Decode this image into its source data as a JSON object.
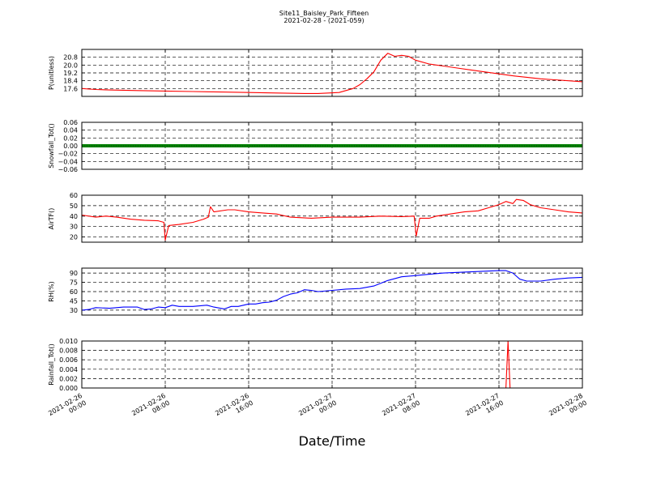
{
  "figure": {
    "title_line1": "Site11_Baisley_Park_Fifteen",
    "title_line2": "2021-02-28 - (2021-059)",
    "xlabel": "Date/Time"
  },
  "chart_data": {
    "type": "line",
    "x_range": [
      "2021-02-26 00:00",
      "2021-02-28 00:00"
    ],
    "x_tick_labels": [
      [
        "2021-02-26",
        "00:00"
      ],
      [
        "2021-02-26",
        "08:00"
      ],
      [
        "2021-02-26",
        "16:00"
      ],
      [
        "2021-02-27",
        "00:00"
      ],
      [
        "2021-02-27",
        "08:00"
      ],
      [
        "2021-02-27",
        "16:00"
      ],
      [
        "2021-02-28",
        "00:00"
      ]
    ],
    "grid": true,
    "panels": [
      {
        "ylabel": "P(unitless)",
        "color": "#ff0000",
        "ylim": [
          16.8,
          21.6
        ],
        "yticks": [
          "17.6",
          "18.4",
          "19.2",
          "20.0",
          "20.8"
        ],
        "series": [
          {
            "x": 0,
            "y": 17.6
          },
          {
            "x": 2,
            "y": 17.5
          },
          {
            "x": 4,
            "y": 17.45
          },
          {
            "x": 8,
            "y": 17.4
          },
          {
            "x": 12,
            "y": 17.35
          },
          {
            "x": 16,
            "y": 17.3
          },
          {
            "x": 20,
            "y": 17.25
          },
          {
            "x": 24,
            "y": 17.2
          },
          {
            "x": 28,
            "y": 17.15
          },
          {
            "x": 32,
            "y": 17.1
          },
          {
            "x": 34,
            "y": 17.1
          },
          {
            "x": 37,
            "y": 17.2
          },
          {
            "x": 39,
            "y": 17.6
          },
          {
            "x": 40,
            "y": 18.0
          },
          {
            "x": 41,
            "y": 18.6
          },
          {
            "x": 42,
            "y": 19.3
          },
          {
            "x": 43,
            "y": 20.5
          },
          {
            "x": 44,
            "y": 21.2
          },
          {
            "x": 45,
            "y": 20.9
          },
          {
            "x": 46,
            "y": 21.0
          },
          {
            "x": 47,
            "y": 20.9
          },
          {
            "x": 48,
            "y": 20.5
          },
          {
            "x": 50,
            "y": 20.1
          },
          {
            "x": 52,
            "y": 19.9
          },
          {
            "x": 54,
            "y": 19.7
          },
          {
            "x": 56,
            "y": 19.5
          },
          {
            "x": 58,
            "y": 19.3
          },
          {
            "x": 60,
            "y": 19.1
          },
          {
            "x": 62,
            "y": 18.9
          },
          {
            "x": 64,
            "y": 18.75
          },
          {
            "x": 66,
            "y": 18.6
          },
          {
            "x": 68,
            "y": 18.5
          },
          {
            "x": 70,
            "y": 18.4
          },
          {
            "x": 72,
            "y": 18.3
          }
        ]
      },
      {
        "ylabel": "Snowfall_Tot()",
        "color": "#008000",
        "ylim": [
          -0.06,
          0.06
        ],
        "yticks": [
          "−0.06",
          "−0.04",
          "−0.02",
          "0.00",
          "0.02",
          "0.04",
          "0.06"
        ],
        "series": [
          {
            "x": 0,
            "y": 0.0
          },
          {
            "x": 72,
            "y": 0.0
          }
        ]
      },
      {
        "ylabel": "AirTF()",
        "color": "#ff0000",
        "ylim": [
          15,
          60
        ],
        "yticks": [
          "20",
          "30",
          "40",
          "50",
          "60"
        ],
        "series": [
          {
            "x": 0,
            "y": 41
          },
          {
            "x": 2,
            "y": 39
          },
          {
            "x": 3.5,
            "y": 40
          },
          {
            "x": 5,
            "y": 39
          },
          {
            "x": 7,
            "y": 37
          },
          {
            "x": 9,
            "y": 36
          },
          {
            "x": 11,
            "y": 35.5
          },
          {
            "x": 11.8,
            "y": 34
          },
          {
            "x": 12,
            "y": 17
          },
          {
            "x": 12.5,
            "y": 31
          },
          {
            "x": 14,
            "y": 32
          },
          {
            "x": 16,
            "y": 34
          },
          {
            "x": 17.5,
            "y": 37
          },
          {
            "x": 18.2,
            "y": 39
          },
          {
            "x": 18.5,
            "y": 49
          },
          {
            "x": 19,
            "y": 44
          },
          {
            "x": 21,
            "y": 46
          },
          {
            "x": 22,
            "y": 46
          },
          {
            "x": 24,
            "y": 44
          },
          {
            "x": 26,
            "y": 43
          },
          {
            "x": 28,
            "y": 42
          },
          {
            "x": 30,
            "y": 39
          },
          {
            "x": 33,
            "y": 38
          },
          {
            "x": 36,
            "y": 39
          },
          {
            "x": 40,
            "y": 39
          },
          {
            "x": 43,
            "y": 40
          },
          {
            "x": 46,
            "y": 39.5
          },
          {
            "x": 47.8,
            "y": 40
          },
          {
            "x": 48.1,
            "y": 21
          },
          {
            "x": 48.6,
            "y": 38
          },
          {
            "x": 50,
            "y": 38
          },
          {
            "x": 51,
            "y": 40
          },
          {
            "x": 53,
            "y": 42
          },
          {
            "x": 55,
            "y": 44
          },
          {
            "x": 57,
            "y": 45
          },
          {
            "x": 58.5,
            "y": 48
          },
          {
            "x": 60,
            "y": 51
          },
          {
            "x": 61,
            "y": 54
          },
          {
            "x": 62,
            "y": 52
          },
          {
            "x": 62.5,
            "y": 56
          },
          {
            "x": 63.5,
            "y": 55
          },
          {
            "x": 64.5,
            "y": 51
          },
          {
            "x": 66,
            "y": 48
          },
          {
            "x": 68,
            "y": 46
          },
          {
            "x": 70,
            "y": 44
          },
          {
            "x": 72,
            "y": 43
          }
        ]
      },
      {
        "ylabel": "RH(%)",
        "color": "#0000ff",
        "ylim": [
          22,
          98
        ],
        "yticks": [
          "30",
          "45",
          "60",
          "75",
          "90"
        ],
        "series": [
          {
            "x": 0,
            "y": 30
          },
          {
            "x": 1,
            "y": 31
          },
          {
            "x": 2,
            "y": 34
          },
          {
            "x": 4,
            "y": 33
          },
          {
            "x": 6,
            "y": 35
          },
          {
            "x": 8,
            "y": 35
          },
          {
            "x": 9,
            "y": 31
          },
          {
            "x": 10,
            "y": 32
          },
          {
            "x": 11,
            "y": 35
          },
          {
            "x": 12,
            "y": 34
          },
          {
            "x": 13,
            "y": 38
          },
          {
            "x": 14,
            "y": 36
          },
          {
            "x": 16,
            "y": 36
          },
          {
            "x": 18,
            "y": 38
          },
          {
            "x": 19,
            "y": 35
          },
          {
            "x": 20.5,
            "y": 32
          },
          {
            "x": 21.5,
            "y": 36
          },
          {
            "x": 22.5,
            "y": 36
          },
          {
            "x": 24,
            "y": 40
          },
          {
            "x": 25,
            "y": 40
          },
          {
            "x": 26,
            "y": 42
          },
          {
            "x": 27,
            "y": 43
          },
          {
            "x": 28,
            "y": 46
          },
          {
            "x": 29,
            "y": 52
          },
          {
            "x": 30,
            "y": 56
          },
          {
            "x": 31,
            "y": 58
          },
          {
            "x": 32,
            "y": 63
          },
          {
            "x": 33,
            "y": 62
          },
          {
            "x": 34,
            "y": 60
          },
          {
            "x": 36,
            "y": 62
          },
          {
            "x": 38,
            "y": 64
          },
          {
            "x": 40,
            "y": 65
          },
          {
            "x": 42,
            "y": 69
          },
          {
            "x": 44,
            "y": 78
          },
          {
            "x": 46,
            "y": 84
          },
          {
            "x": 48,
            "y": 86
          },
          {
            "x": 50,
            "y": 88
          },
          {
            "x": 52,
            "y": 90
          },
          {
            "x": 54,
            "y": 91
          },
          {
            "x": 56,
            "y": 92
          },
          {
            "x": 58,
            "y": 93
          },
          {
            "x": 60,
            "y": 94
          },
          {
            "x": 61,
            "y": 94
          },
          {
            "x": 62,
            "y": 90
          },
          {
            "x": 63,
            "y": 80
          },
          {
            "x": 64,
            "y": 77
          },
          {
            "x": 66,
            "y": 77
          },
          {
            "x": 68,
            "y": 80
          },
          {
            "x": 70,
            "y": 82
          },
          {
            "x": 72,
            "y": 83
          }
        ]
      },
      {
        "ylabel": "Rainfall_Tot()",
        "color": "#ff0000",
        "ylim": [
          0,
          0.01
        ],
        "yticks": [
          "0.000",
          "0.002",
          "0.004",
          "0.006",
          "0.008",
          "0.010"
        ],
        "series": [
          {
            "x": 0,
            "y": 0
          },
          {
            "x": 61,
            "y": 0
          },
          {
            "x": 61.3,
            "y": 0.01
          },
          {
            "x": 61.6,
            "y": 0
          },
          {
            "x": 72,
            "y": 0
          }
        ]
      }
    ]
  }
}
